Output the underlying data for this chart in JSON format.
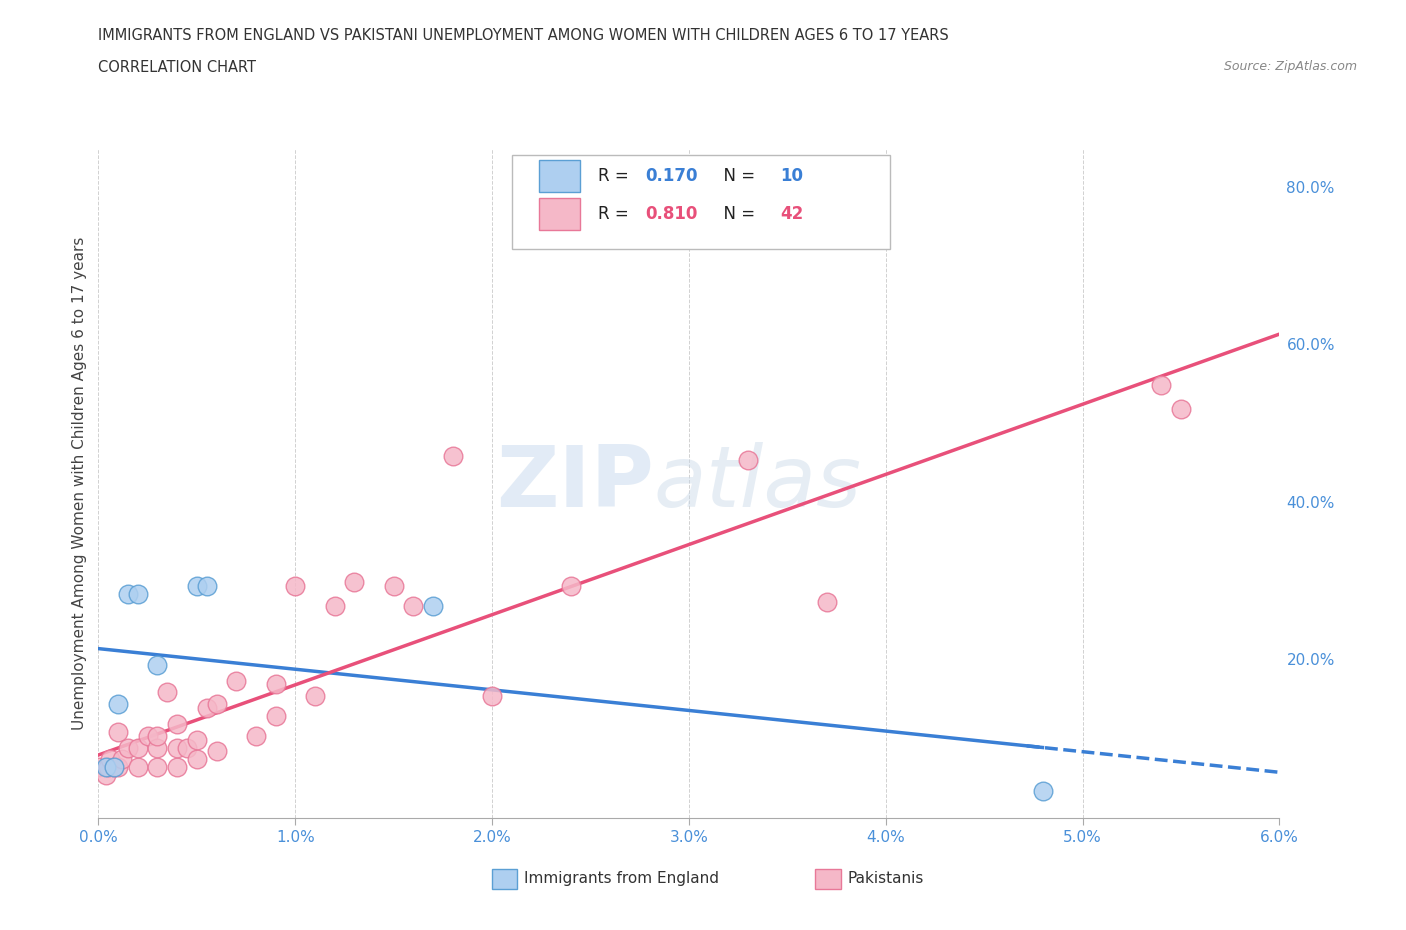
{
  "title": "IMMIGRANTS FROM ENGLAND VS PAKISTANI UNEMPLOYMENT AMONG WOMEN WITH CHILDREN AGES 6 TO 17 YEARS",
  "subtitle": "CORRELATION CHART",
  "source": "Source: ZipAtlas.com",
  "ylabel": "Unemployment Among Women with Children Ages 6 to 17 years",
  "xlim": [
    0.0,
    0.06
  ],
  "ylim": [
    0.0,
    0.85
  ],
  "xticks": [
    0.0,
    0.01,
    0.02,
    0.03,
    0.04,
    0.05,
    0.06
  ],
  "xticklabels": [
    "0.0%",
    "1.0%",
    "2.0%",
    "3.0%",
    "4.0%",
    "5.0%",
    "6.0%"
  ],
  "yticks": [
    0.2,
    0.4,
    0.6,
    0.8
  ],
  "yticklabels": [
    "20.0%",
    "40.0%",
    "60.0%",
    "80.0%"
  ],
  "england_color": "#aecff0",
  "england_edge": "#5b9fd4",
  "pakistan_color": "#f5b8c8",
  "pakistan_edge": "#e87898",
  "england_line_color": "#3a7fd5",
  "pakistan_line_color": "#e8507a",
  "tick_color": "#4a90d9",
  "england_R": 0.17,
  "england_N": 10,
  "pakistan_R": 0.81,
  "pakistan_N": 42,
  "watermark_zip": "ZIP",
  "watermark_atlas": "atlas",
  "england_x": [
    0.0004,
    0.0008,
    0.001,
    0.0015,
    0.002,
    0.003,
    0.005,
    0.0055,
    0.017,
    0.048
  ],
  "england_y": [
    0.065,
    0.065,
    0.145,
    0.285,
    0.285,
    0.195,
    0.295,
    0.295,
    0.27,
    0.035
  ],
  "pakistan_x": [
    0.0,
    0.0004,
    0.0005,
    0.0006,
    0.0008,
    0.001,
    0.001,
    0.0012,
    0.0015,
    0.002,
    0.002,
    0.0025,
    0.003,
    0.003,
    0.003,
    0.0035,
    0.004,
    0.004,
    0.004,
    0.0045,
    0.005,
    0.005,
    0.0055,
    0.006,
    0.006,
    0.007,
    0.008,
    0.009,
    0.009,
    0.01,
    0.011,
    0.012,
    0.013,
    0.015,
    0.016,
    0.018,
    0.02,
    0.024,
    0.033,
    0.037,
    0.054,
    0.055
  ],
  "pakistan_y": [
    0.065,
    0.055,
    0.065,
    0.075,
    0.065,
    0.065,
    0.11,
    0.075,
    0.09,
    0.065,
    0.09,
    0.105,
    0.065,
    0.09,
    0.105,
    0.16,
    0.065,
    0.09,
    0.12,
    0.09,
    0.075,
    0.1,
    0.14,
    0.085,
    0.145,
    0.175,
    0.105,
    0.13,
    0.17,
    0.295,
    0.155,
    0.27,
    0.3,
    0.295,
    0.27,
    0.46,
    0.155,
    0.295,
    0.455,
    0.275,
    0.55,
    0.52
  ]
}
